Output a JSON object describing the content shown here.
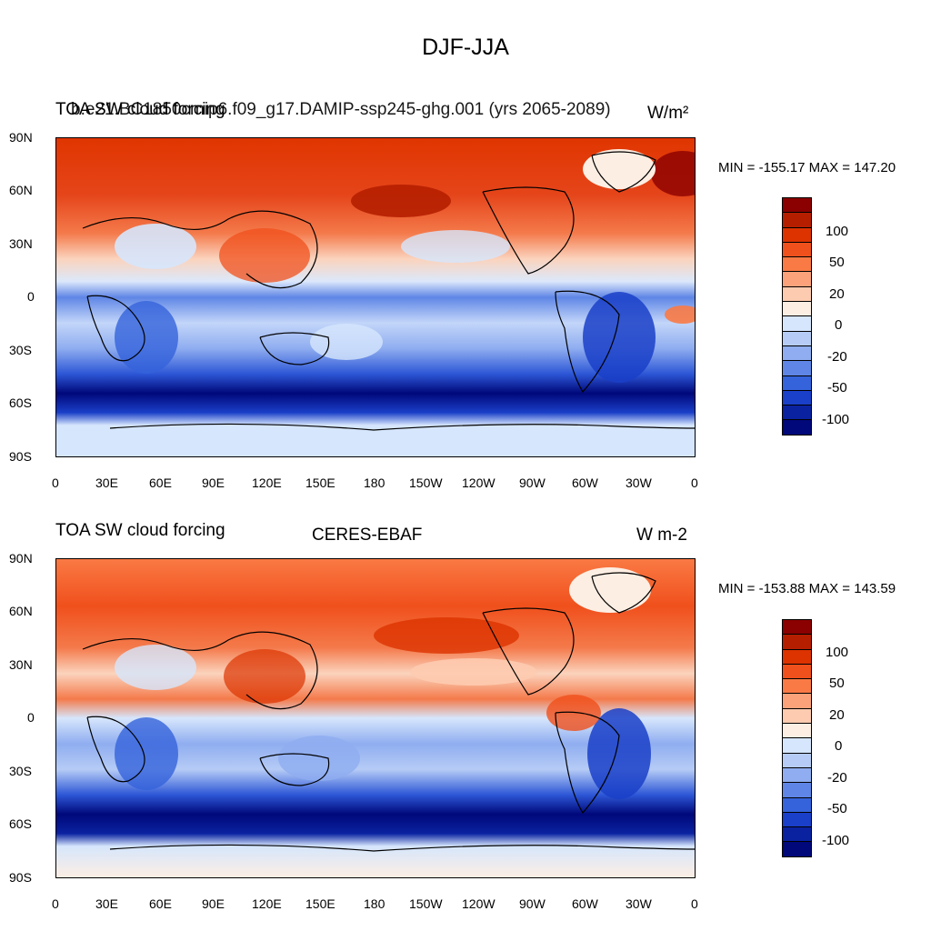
{
  "main_title": "DJF-JJA",
  "panels": [
    {
      "left_title": "TOA SW cloud forcing",
      "center_title": "b.e21.BC1850cmip6.f09_g17.DAMIP-ssp245-ghg.001 (yrs 2065-2089)",
      "units": "W/m²",
      "minmax": "MIN = -155.17 MAX = 147.20"
    },
    {
      "left_title": "TOA SW cloud forcing",
      "center_title": "CERES-EBAF",
      "units": "W m-2",
      "minmax": "MIN = -153.88 MAX = 143.59"
    }
  ],
  "lat_labels": [
    "90N",
    "60N",
    "30N",
    "0",
    "30S",
    "60S",
    "90S"
  ],
  "lon_labels": [
    "0",
    "30E",
    "60E",
    "90E",
    "120E",
    "150E",
    "180",
    "150W",
    "120W",
    "90W",
    "60W",
    "30W",
    "0"
  ],
  "colorbar": {
    "labels": [
      "100",
      "50",
      "20",
      "0",
      "-20",
      "-50",
      "-100"
    ],
    "colors": [
      "#8b0000",
      "#b51f00",
      "#dc3300",
      "#f0501c",
      "#fa7a45",
      "#fca27a",
      "#fdcbb0",
      "#fdeee3",
      "#d6e6fc",
      "#b6ccf6",
      "#8fadf0",
      "#5f86e6",
      "#3563db",
      "#1a3fc8",
      "#0a22a0",
      "#00087a"
    ]
  }
}
